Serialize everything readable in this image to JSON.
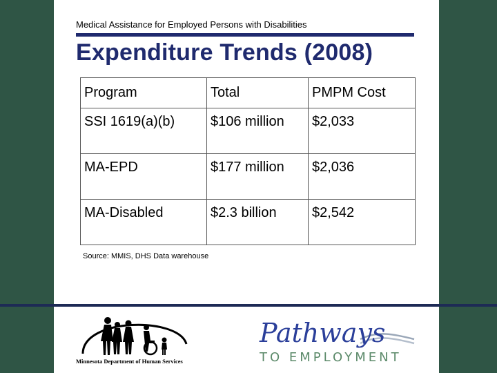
{
  "header": {
    "supertitle": "Medical Assistance for Employed Persons with Disabilities",
    "title": "Expenditure Trends (2008)"
  },
  "table": {
    "columns": [
      "Program",
      "Total",
      "PMPM Cost"
    ],
    "rows": [
      [
        "SSI 1619(a)(b)",
        "$106 million",
        "$2,033"
      ],
      [
        "MA-EPD",
        "$177 million",
        "$2,036"
      ],
      [
        "MA-Disabled",
        "$2.3 billion",
        "$2,542"
      ]
    ]
  },
  "source": "Source: MMIS, DHS Data warehouse",
  "logos": {
    "dhs": "Minnesota Department of Human Services",
    "pathways_script": "Pathways",
    "pathways_sub": "TO EMPLOYMENT"
  },
  "colors": {
    "background": "#2f5545",
    "title": "#1f2a6e",
    "band": "#1d2a55"
  }
}
